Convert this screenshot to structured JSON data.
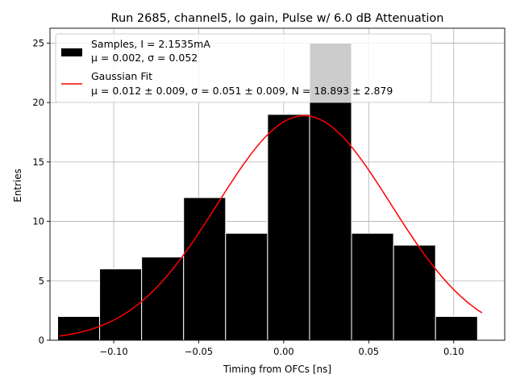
{
  "chart_data": {
    "type": "bar",
    "title": "Run 2685, channel5, lo gain, Pulse w/ 6.0 dB Attenuation",
    "xlabel": "Timing from OFCs [ns]",
    "ylabel": "Entries",
    "xlim": [
      -0.1375,
      0.13
    ],
    "ylim": [
      0,
      26.25
    ],
    "grid": true,
    "xticks": [
      -0.1,
      -0.05,
      0.0,
      0.05,
      0.1
    ],
    "xtick_labels": [
      "−0.10",
      "−0.05",
      "0.00",
      "0.05",
      "0.10"
    ],
    "yticks": [
      0,
      5,
      10,
      15,
      20,
      25
    ],
    "ytick_labels": [
      "0",
      "5",
      "10",
      "15",
      "20",
      "25"
    ],
    "histogram": {
      "name": "Samples",
      "bin_edges": [
        -0.133,
        -0.1083,
        -0.0836,
        -0.0589,
        -0.0342,
        -0.0095,
        0.0152,
        0.0399,
        0.0646,
        0.0893,
        0.114
      ],
      "counts": [
        2,
        6,
        7,
        12,
        9,
        19,
        25,
        9,
        8,
        2
      ],
      "color": "#000000"
    },
    "fit": {
      "name": "Gaussian Fit",
      "mu": 0.012,
      "sigma": 0.051,
      "N": 18.893,
      "x_range": [
        -0.1317,
        0.1166
      ],
      "color": "#ff0000"
    },
    "legend": {
      "placement": "top-left",
      "entries": [
        {
          "line1": "Samples, I = 2.1535mA",
          "line2": "μ = 0.002, σ = 0.052"
        },
        {
          "line1": "Gaussian Fit",
          "line2": "μ = 0.012 ± 0.009, σ = 0.051 ± 0.009, N = 18.893 ± 2.879"
        }
      ]
    }
  }
}
